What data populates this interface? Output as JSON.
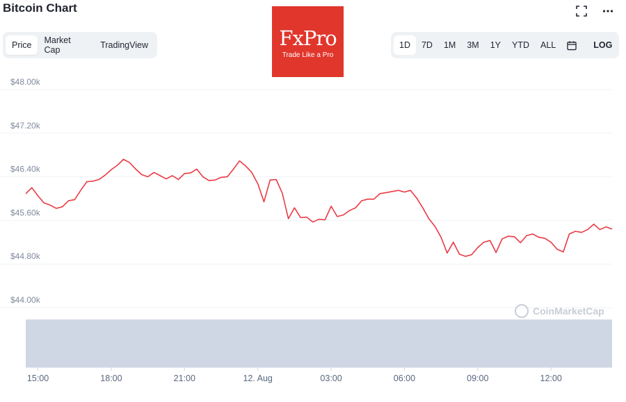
{
  "header": {
    "title": "Bitcoin Chart"
  },
  "tabs": [
    {
      "label": "Price",
      "active": true
    },
    {
      "label": "Market Cap",
      "active": false
    },
    {
      "label": "TradingView",
      "active": false
    }
  ],
  "logo": {
    "main": "FxPro",
    "sub": "Trade Like a Pro",
    "color": "#e0362c"
  },
  "top_icons": [
    "fullscreen-icon",
    "more-icon"
  ],
  "ranges": {
    "items": [
      {
        "label": "1D",
        "active": true
      },
      {
        "label": "7D",
        "active": false
      },
      {
        "label": "1M",
        "active": false
      },
      {
        "label": "3M",
        "active": false
      },
      {
        "label": "1Y",
        "active": false
      },
      {
        "label": "YTD",
        "active": false
      },
      {
        "label": "ALL",
        "active": false
      }
    ],
    "calendar_icon": "calendar-icon",
    "log_label": "LOG"
  },
  "watermark": "CoinMarketCap",
  "chart_data": {
    "type": "line",
    "series_color": "#ea3943",
    "volume_color": "#cfd6e4",
    "ylim": [
      44000,
      48000
    ],
    "yticks": [
      48000,
      47200,
      46400,
      45600,
      44800,
      44000
    ],
    "ytick_labels": [
      "$48.00k",
      "$47.20k",
      "$46.40k",
      "$45.60k",
      "$44.80k",
      "$44.00k"
    ],
    "x_range_hours": [
      14.5,
      38.5
    ],
    "xticks": [
      15,
      18,
      21,
      24,
      27,
      30,
      33,
      36
    ],
    "xtick_labels": [
      "15:00",
      "18:00",
      "21:00",
      "12. Aug",
      "03:00",
      "06:00",
      "09:00",
      "12:00"
    ],
    "grid": true,
    "x": [
      14.5,
      14.75,
      15.0,
      15.25,
      15.5,
      15.75,
      16.0,
      16.25,
      16.5,
      16.75,
      17.0,
      17.25,
      17.5,
      17.75,
      18.0,
      18.25,
      18.5,
      18.75,
      19.0,
      19.25,
      19.5,
      19.75,
      20.0,
      20.25,
      20.5,
      20.75,
      21.0,
      21.25,
      21.5,
      21.75,
      22.0,
      22.25,
      22.5,
      22.75,
      23.0,
      23.25,
      23.5,
      23.75,
      24.0,
      24.25,
      24.5,
      24.75,
      25.0,
      25.25,
      25.5,
      25.75,
      26.0,
      26.25,
      26.5,
      26.75,
      27.0,
      27.25,
      27.5,
      27.75,
      28.0,
      28.25,
      28.5,
      28.75,
      29.0,
      29.25,
      29.5,
      29.75,
      30.0,
      30.25,
      30.5,
      30.75,
      31.0,
      31.25,
      31.5,
      31.75,
      32.0,
      32.25,
      32.5,
      32.75,
      33.0,
      33.25,
      33.5,
      33.75,
      34.0,
      34.25,
      34.5,
      34.75,
      35.0,
      35.25,
      35.5,
      35.75,
      36.0,
      36.25,
      36.5,
      36.75,
      37.0,
      37.25,
      37.5,
      37.75,
      38.0,
      38.25,
      38.5
    ],
    "y": [
      46090,
      46200,
      46050,
      45920,
      45880,
      45820,
      45850,
      45960,
      45980,
      46150,
      46310,
      46320,
      46350,
      46430,
      46530,
      46610,
      46720,
      46660,
      46540,
      46440,
      46400,
      46480,
      46420,
      46360,
      46420,
      46350,
      46460,
      46470,
      46540,
      46400,
      46330,
      46340,
      46390,
      46400,
      46540,
      46690,
      46600,
      46480,
      46270,
      45940,
      46340,
      46350,
      46100,
      45630,
      45830,
      45650,
      45660,
      45570,
      45620,
      45610,
      45860,
      45670,
      45700,
      45780,
      45830,
      45960,
      45990,
      45990,
      46090,
      46110,
      46130,
      46150,
      46120,
      46150,
      46010,
      45830,
      45630,
      45490,
      45290,
      45000,
      45200,
      44980,
      44940,
      44970,
      45100,
      45200,
      45230,
      45010,
      45260,
      45310,
      45300,
      45190,
      45320,
      45350,
      45290,
      45270,
      45200,
      45070,
      45020,
      45350,
      45400,
      45380,
      45430,
      45530,
      45430,
      45480,
      45440
    ],
    "volume_level": 0.93
  }
}
